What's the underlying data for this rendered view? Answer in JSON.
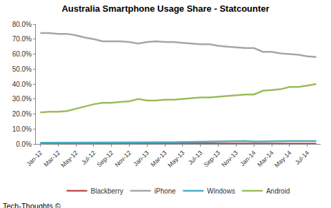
{
  "chart_data": {
    "type": "line",
    "title": "Australia Smartphone Usage Share - Statcounter",
    "categories": [
      "Jan-12",
      null,
      "Mar-12",
      null,
      "May-12",
      null,
      "Jul-12",
      null,
      "Sep-12",
      null,
      "Nov-12",
      null,
      "Jan-13",
      null,
      "Mar-13",
      null,
      "May-13",
      null,
      "Jul-13",
      null,
      "Sep-13",
      null,
      "Nov-13",
      null,
      "Jan-14",
      null,
      "Mar-14",
      null,
      "May-14",
      null,
      "Jul-14",
      null
    ],
    "series": [
      {
        "name": "Blackberry",
        "color": "#c0504d",
        "values": [
          0.5,
          0.5,
          0.5,
          0.5,
          0.5,
          0.5,
          0.5,
          0.5,
          0.5,
          0.5,
          0.5,
          0.5,
          0.5,
          0.5,
          0.5,
          0.5,
          0.5,
          0.5,
          0.5,
          0.5,
          0.5,
          0.5,
          0.5,
          0.5,
          0.4,
          0.4,
          0.3,
          0.3,
          0.3,
          0.3,
          0.2,
          0.2
        ]
      },
      {
        "name": "iPhone",
        "color": "#a5a5a5",
        "values": [
          74,
          74,
          73.5,
          73.5,
          72.5,
          71,
          70,
          68.5,
          68.5,
          68.5,
          68,
          67,
          68,
          68.5,
          68,
          68,
          67.5,
          67,
          66.5,
          66.5,
          65.5,
          65,
          64.5,
          64,
          64,
          61.5,
          61.5,
          60.5,
          60,
          59.5,
          58.5,
          58
        ]
      },
      {
        "name": "Windows",
        "color": "#4bacc6",
        "values": [
          0.8,
          0.8,
          0.8,
          0.8,
          0.8,
          0.8,
          0.8,
          0.8,
          0.8,
          0.8,
          0.8,
          0.8,
          0.9,
          1.0,
          1.1,
          1.2,
          1.3,
          1.4,
          1.5,
          1.6,
          1.8,
          1.8,
          1.9,
          1.9,
          1.6,
          1.6,
          1.7,
          1.8,
          1.9,
          2.0,
          2.0,
          2.0
        ]
      },
      {
        "name": "Android",
        "color": "#9bbb59",
        "values": [
          21,
          21.5,
          21.5,
          22,
          23.5,
          25,
          26.5,
          27.5,
          27.5,
          28,
          28.5,
          30,
          29,
          29,
          29.5,
          29.5,
          30,
          30.5,
          31,
          31,
          31.5,
          32,
          32.5,
          33,
          33,
          35.5,
          36,
          36.5,
          38,
          38,
          39,
          40
        ]
      }
    ],
    "ylim": [
      0,
      80
    ],
    "yticks": [
      {
        "value": 0,
        "label": "0.0%"
      },
      {
        "value": 10,
        "label": "10.0%"
      },
      {
        "value": 20,
        "label": "20.0%"
      },
      {
        "value": 30,
        "label": "30.0%"
      },
      {
        "value": 40,
        "label": "40.0%"
      },
      {
        "value": 50,
        "label": "50.0%"
      },
      {
        "value": 60,
        "label": "60.0%"
      },
      {
        "value": 70,
        "label": "70.0%"
      },
      {
        "value": 80,
        "label": "80.0%"
      }
    ],
    "grid": false,
    "legend": "bottom",
    "annotations": [
      "Tech-Thoughts ©"
    ]
  }
}
